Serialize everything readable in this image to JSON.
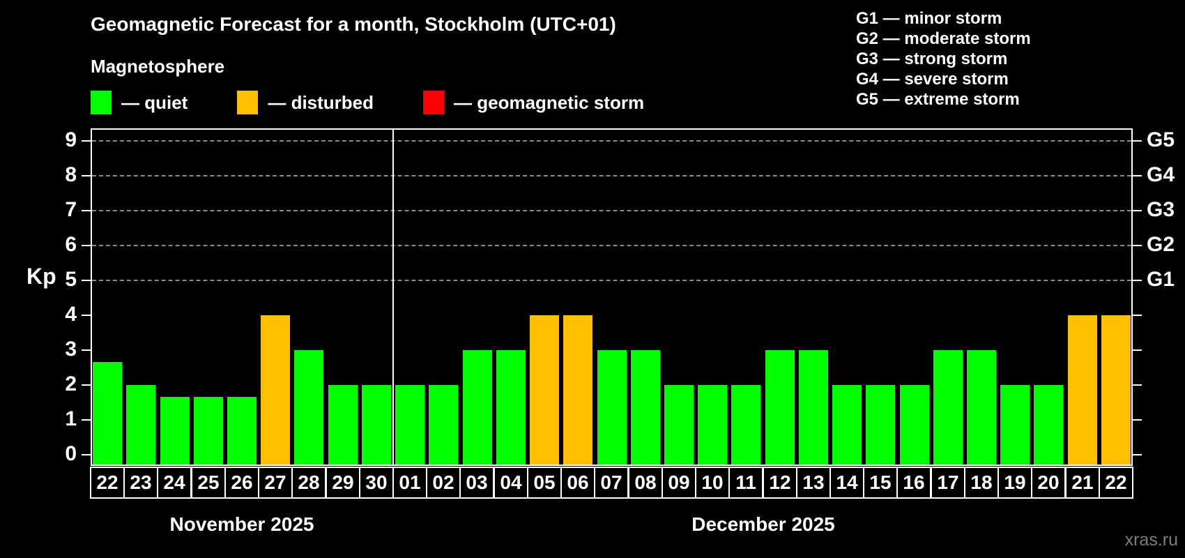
{
  "title": "Geomagnetic Forecast for a month, Stockholm (UTC+01)",
  "subtitle": "Magnetosphere",
  "condition_legend": [
    {
      "key": "quiet",
      "swatch_color": "#00ff00",
      "label": "— quiet"
    },
    {
      "key": "disturbed",
      "swatch_color": "#ffc000",
      "label": "— disturbed"
    },
    {
      "key": "storm",
      "swatch_color": "#ff0000",
      "label": "— geomagnetic storm"
    }
  ],
  "storm_scale_legend": [
    "G1 — minor storm",
    "G2 — moderate storm",
    "G3 — strong storm",
    "G4 — severe storm",
    "G5 — extreme storm"
  ],
  "watermark": "xras.ru",
  "colors": {
    "background": "#000000",
    "text": "#ffffff",
    "grid": "#999999",
    "quiet": "#00ff00",
    "disturbed": "#ffc000",
    "storm": "#ff0000",
    "watermark": "#7d7d7d"
  },
  "chart_data": {
    "type": "bar",
    "y_axis_label": "Kp",
    "y_ticks": [
      0,
      1,
      2,
      3,
      4,
      5,
      6,
      7,
      8,
      9
    ],
    "ylim": [
      -0.3,
      9.4
    ],
    "grid_dashed_at": [
      5,
      6,
      7,
      8,
      9
    ],
    "grid_on": true,
    "right_axis_labels": [
      {
        "kp": 5,
        "label": "G1"
      },
      {
        "kp": 6,
        "label": "G2"
      },
      {
        "kp": 7,
        "label": "G3"
      },
      {
        "kp": 8,
        "label": "G4"
      },
      {
        "kp": 9,
        "label": "G5"
      }
    ],
    "categories": [
      "22",
      "23",
      "24",
      "25",
      "26",
      "27",
      "28",
      "29",
      "30",
      "01",
      "02",
      "03",
      "04",
      "05",
      "06",
      "07",
      "08",
      "09",
      "10",
      "11",
      "12",
      "13",
      "14",
      "15",
      "16",
      "17",
      "18",
      "19",
      "20",
      "21",
      "22"
    ],
    "values": [
      2.67,
      2,
      1.67,
      1.67,
      1.67,
      4,
      3,
      2,
      2,
      2,
      2,
      3,
      3,
      4,
      4,
      3,
      3,
      2,
      2,
      2,
      3,
      3,
      2,
      2,
      2,
      3,
      3,
      2,
      2,
      4,
      4
    ],
    "status": [
      "quiet",
      "quiet",
      "quiet",
      "quiet",
      "quiet",
      "disturbed",
      "quiet",
      "quiet",
      "quiet",
      "quiet",
      "quiet",
      "quiet",
      "quiet",
      "disturbed",
      "disturbed",
      "quiet",
      "quiet",
      "quiet",
      "quiet",
      "quiet",
      "quiet",
      "quiet",
      "quiet",
      "quiet",
      "quiet",
      "quiet",
      "quiet",
      "quiet",
      "quiet",
      "disturbed",
      "disturbed"
    ],
    "months": [
      {
        "label": "November 2025",
        "start_index": 0,
        "count": 9
      },
      {
        "label": "December 2025",
        "start_index": 9,
        "count": 22
      }
    ]
  }
}
